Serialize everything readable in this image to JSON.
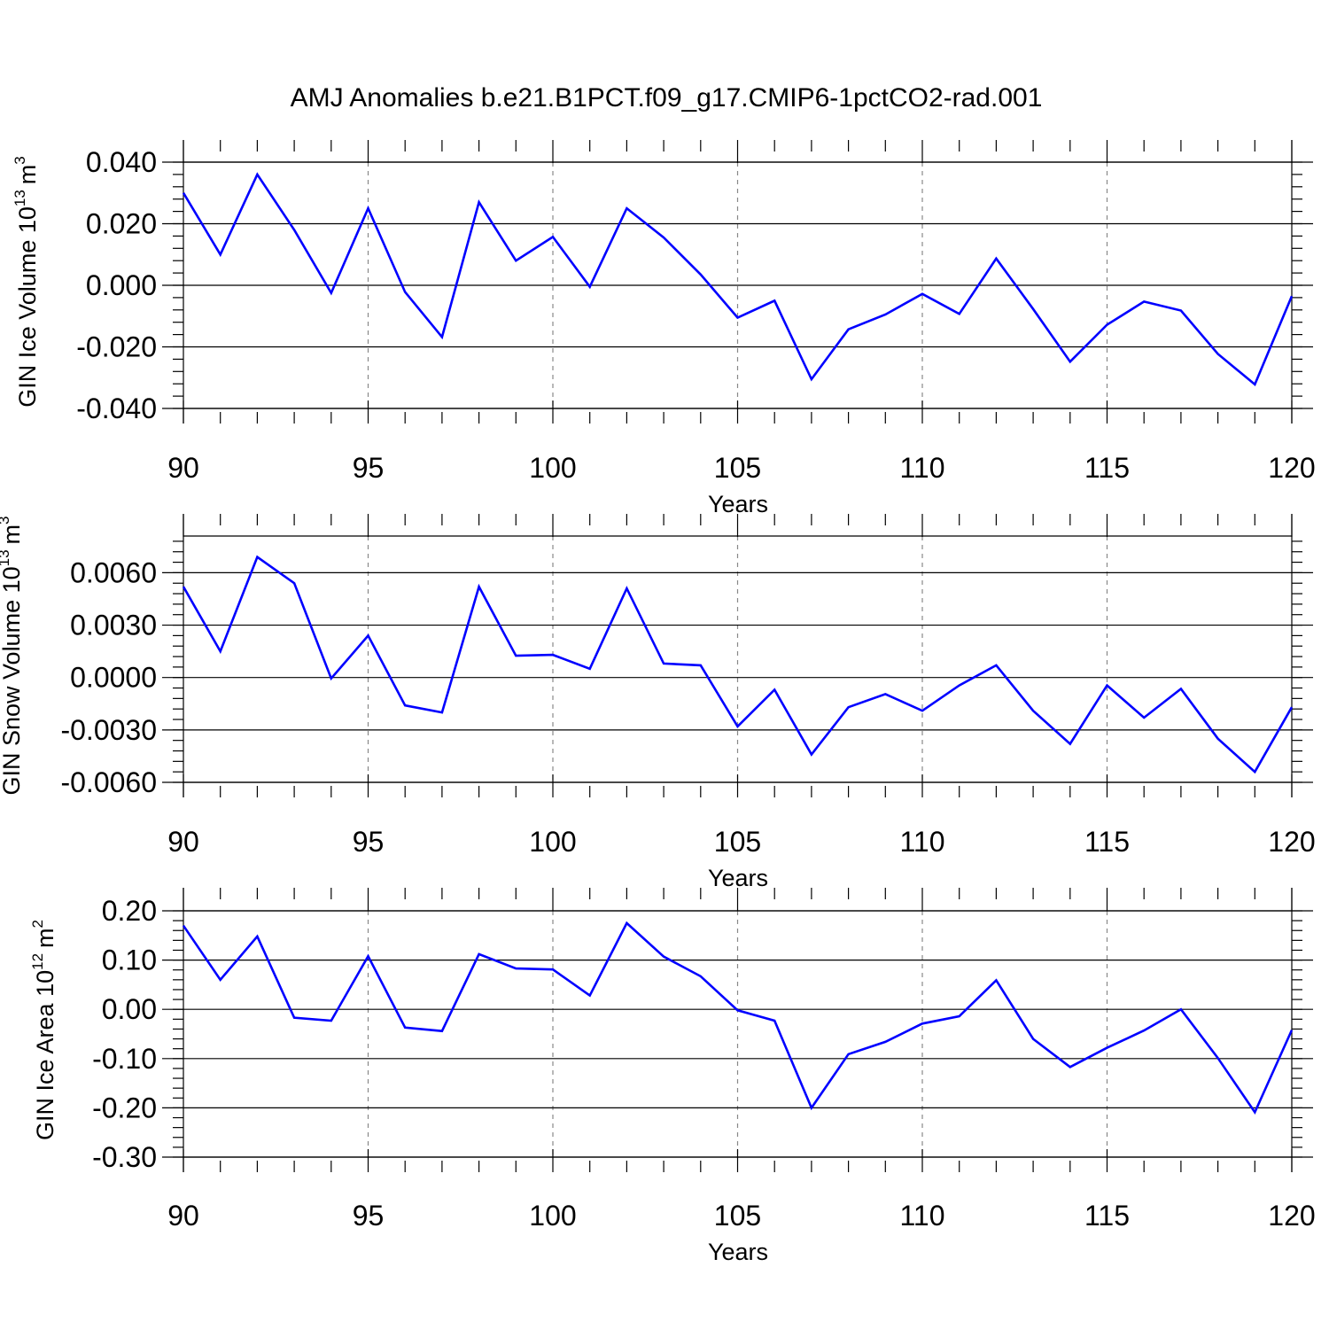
{
  "title": "AMJ Anomalies b.e21.B1PCT.f09_g17.CMIP6-1pctCO2-rad.001",
  "colors": {
    "line": "#0000ff",
    "axis": "#000000",
    "grid": "#888888"
  },
  "chart_data": [
    {
      "type": "line",
      "ylabel": {
        "text": "GIN Ice Volume 10",
        "exponent": "13",
        "unit": "m",
        "unit_exponent": "3"
      },
      "xlabel": "Years",
      "xlim": [
        90,
        120
      ],
      "ylim": [
        -0.04,
        0.04
      ],
      "yticks": [
        "-0.040",
        "-0.020",
        "0.000",
        "0.020",
        "0.040"
      ],
      "ytick_values": [
        -0.04,
        -0.02,
        0,
        0.02,
        0.04
      ],
      "xticks": [
        "90",
        "95",
        "100",
        "105",
        "110",
        "115",
        "120"
      ],
      "xtick_values": [
        90,
        95,
        100,
        105,
        110,
        115,
        120
      ],
      "series": [
        {
          "name": "GIN Ice Volume",
          "x": [
            90,
            91,
            92,
            93,
            94,
            95,
            96,
            97,
            98,
            99,
            100,
            101,
            102,
            103,
            104,
            105,
            106,
            107,
            108,
            109,
            110,
            111,
            112,
            113,
            114,
            115,
            116,
            117,
            118,
            119,
            120
          ],
          "values": [
            0.03,
            0.01,
            0.036,
            0.018,
            -0.0025,
            0.025,
            -0.0022,
            -0.0168,
            0.027,
            0.008,
            0.0157,
            -0.0005,
            0.025,
            0.0155,
            0.0035,
            -0.0105,
            -0.005,
            -0.0305,
            -0.0143,
            -0.0095,
            -0.0028,
            -0.0093,
            0.0087,
            -0.0077,
            -0.0248,
            -0.0128,
            -0.0053,
            -0.0082,
            -0.0223,
            -0.0322,
            -0.0035
          ]
        }
      ]
    },
    {
      "type": "line",
      "ylabel": {
        "text": "GIN Snow Volume 10",
        "exponent": "13",
        "unit": "m",
        "unit_exponent": "3"
      },
      "xlabel": "Years",
      "xlim": [
        90,
        120
      ],
      "ylim": [
        -0.006,
        0.0081
      ],
      "yticks": [
        "-0.0060",
        "-0.0030",
        "0.0000",
        "0.0030",
        "0.0060"
      ],
      "ytick_values": [
        -0.006,
        -0.003,
        0,
        0.003,
        0.006
      ],
      "xticks": [
        "90",
        "95",
        "100",
        "105",
        "110",
        "115",
        "120"
      ],
      "xtick_values": [
        90,
        95,
        100,
        105,
        110,
        115,
        120
      ],
      "series": [
        {
          "name": "GIN Snow Volume",
          "x": [
            90,
            91,
            92,
            93,
            94,
            95,
            96,
            97,
            98,
            99,
            100,
            101,
            102,
            103,
            104,
            105,
            106,
            107,
            108,
            109,
            110,
            111,
            112,
            113,
            114,
            115,
            116,
            117,
            118,
            119,
            120
          ],
          "values": [
            0.0052,
            0.0015,
            0.0069,
            0.0054,
            -5e-05,
            0.0024,
            -0.0016,
            -0.002,
            0.0052,
            0.00125,
            0.0013,
            0.0005,
            0.0051,
            0.0008,
            0.0007,
            -0.0028,
            -0.0007,
            -0.0044,
            -0.0017,
            -0.00095,
            -0.0019,
            -0.00045,
            0.0007,
            -0.0019,
            -0.0038,
            -0.00045,
            -0.0023,
            -0.00065,
            -0.0035,
            -0.0054,
            -0.0017
          ]
        }
      ]
    },
    {
      "type": "line",
      "ylabel": {
        "text": "GIN Ice Area 10",
        "exponent": "12",
        "unit": "m",
        "unit_exponent": "2"
      },
      "xlabel": "Years",
      "xlim": [
        90,
        120
      ],
      "ylim": [
        -0.3,
        0.2
      ],
      "yticks": [
        "-0.30",
        "-0.20",
        "-0.10",
        "0.00",
        "0.10",
        "0.20"
      ],
      "ytick_values": [
        -0.3,
        -0.2,
        -0.1,
        0,
        0.1,
        0.2
      ],
      "xticks": [
        "90",
        "95",
        "100",
        "105",
        "110",
        "115",
        "120"
      ],
      "xtick_values": [
        90,
        95,
        100,
        105,
        110,
        115,
        120
      ],
      "series": [
        {
          "name": "GIN Ice Area",
          "x": [
            90,
            91,
            92,
            93,
            94,
            95,
            96,
            97,
            98,
            99,
            100,
            101,
            102,
            103,
            104,
            105,
            106,
            107,
            108,
            109,
            110,
            111,
            112,
            113,
            114,
            115,
            116,
            117,
            118,
            119,
            120
          ],
          "values": [
            0.17,
            0.06,
            0.148,
            -0.017,
            -0.023,
            0.108,
            -0.037,
            -0.044,
            0.112,
            0.083,
            0.081,
            0.028,
            0.175,
            0.107,
            0.067,
            -0.002,
            -0.023,
            -0.2,
            -0.091,
            -0.066,
            -0.029,
            -0.014,
            0.059,
            -0.06,
            -0.117,
            -0.078,
            -0.043,
            0.0,
            -0.099,
            -0.209,
            -0.042
          ]
        }
      ]
    }
  ]
}
